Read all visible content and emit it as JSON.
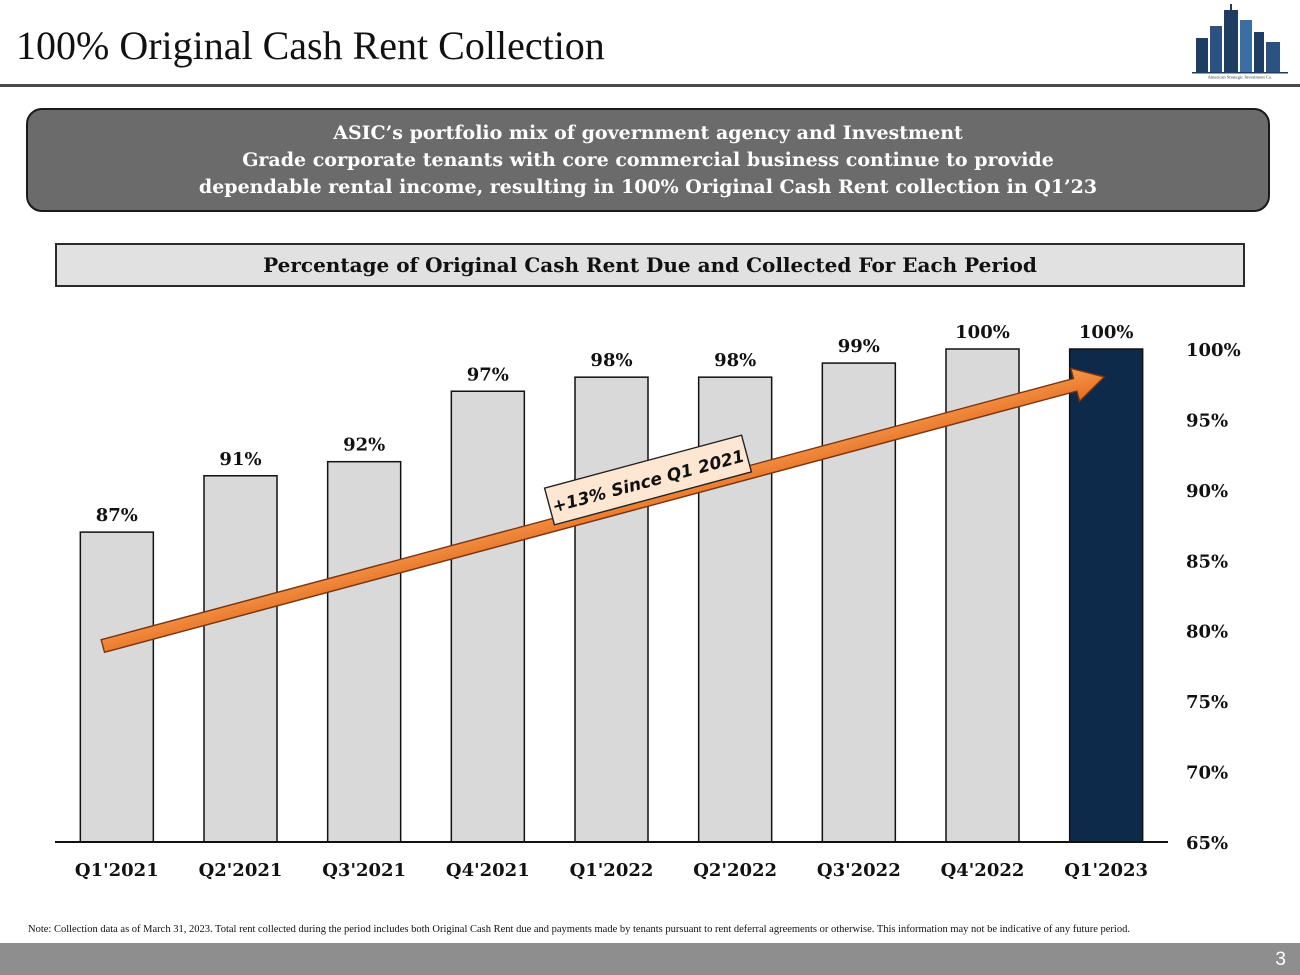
{
  "page": {
    "title": "100% Original Cash Rent Collection",
    "logo": {
      "icon": "city-skyline-logo-icon",
      "caption": "American Strategic Investment Co."
    },
    "callout": {
      "lines": [
        "ASIC’s portfolio mix of government agency and Investment",
        "Grade corporate tenants with core commercial business continue to provide",
        "dependable rental income, resulting in 100% Original Cash Rent collection in Q1’23"
      ]
    },
    "chart_header": "Percentage of Original Cash Rent Due and Collected For Each Period",
    "footnote": "Note: Collection data as of March 31, 2023. Total rent collected during the period includes both Original Cash Rent due and payments made by tenants pursuant to rent deferral agreements or otherwise. This information may not be indicative of any future period.",
    "page_number": "3"
  },
  "chart_data": {
    "type": "bar",
    "title": "Percentage of Original Cash Rent Due and Collected For Each Period",
    "categories": [
      "Q1'2021",
      "Q2'2021",
      "Q3'2021",
      "Q4'2021",
      "Q1'2022",
      "Q2'2022",
      "Q3'2022",
      "Q4'2022",
      "Q1'2023"
    ],
    "values": [
      87,
      91,
      92,
      97,
      98,
      98,
      99,
      100,
      100
    ],
    "data_labels": [
      "87%",
      "91%",
      "92%",
      "97%",
      "98%",
      "98%",
      "99%",
      "100%",
      "100%"
    ],
    "ylim": [
      65,
      100
    ],
    "yticks": [
      "65%",
      "70%",
      "75%",
      "80%",
      "85%",
      "90%",
      "95%",
      "100%"
    ],
    "y_axis_position": "right",
    "grid": false,
    "legend": "none",
    "highlight_index": 8,
    "colors": {
      "bar": "#d9d9d9",
      "highlight": "#0e2a4b",
      "bar_border": "#111111",
      "arrow": "#ed7d31"
    },
    "annotation": {
      "text": "+13% Since Q1 2021",
      "from_category": "Q1'2021",
      "to_category": "Q1'2023"
    }
  }
}
